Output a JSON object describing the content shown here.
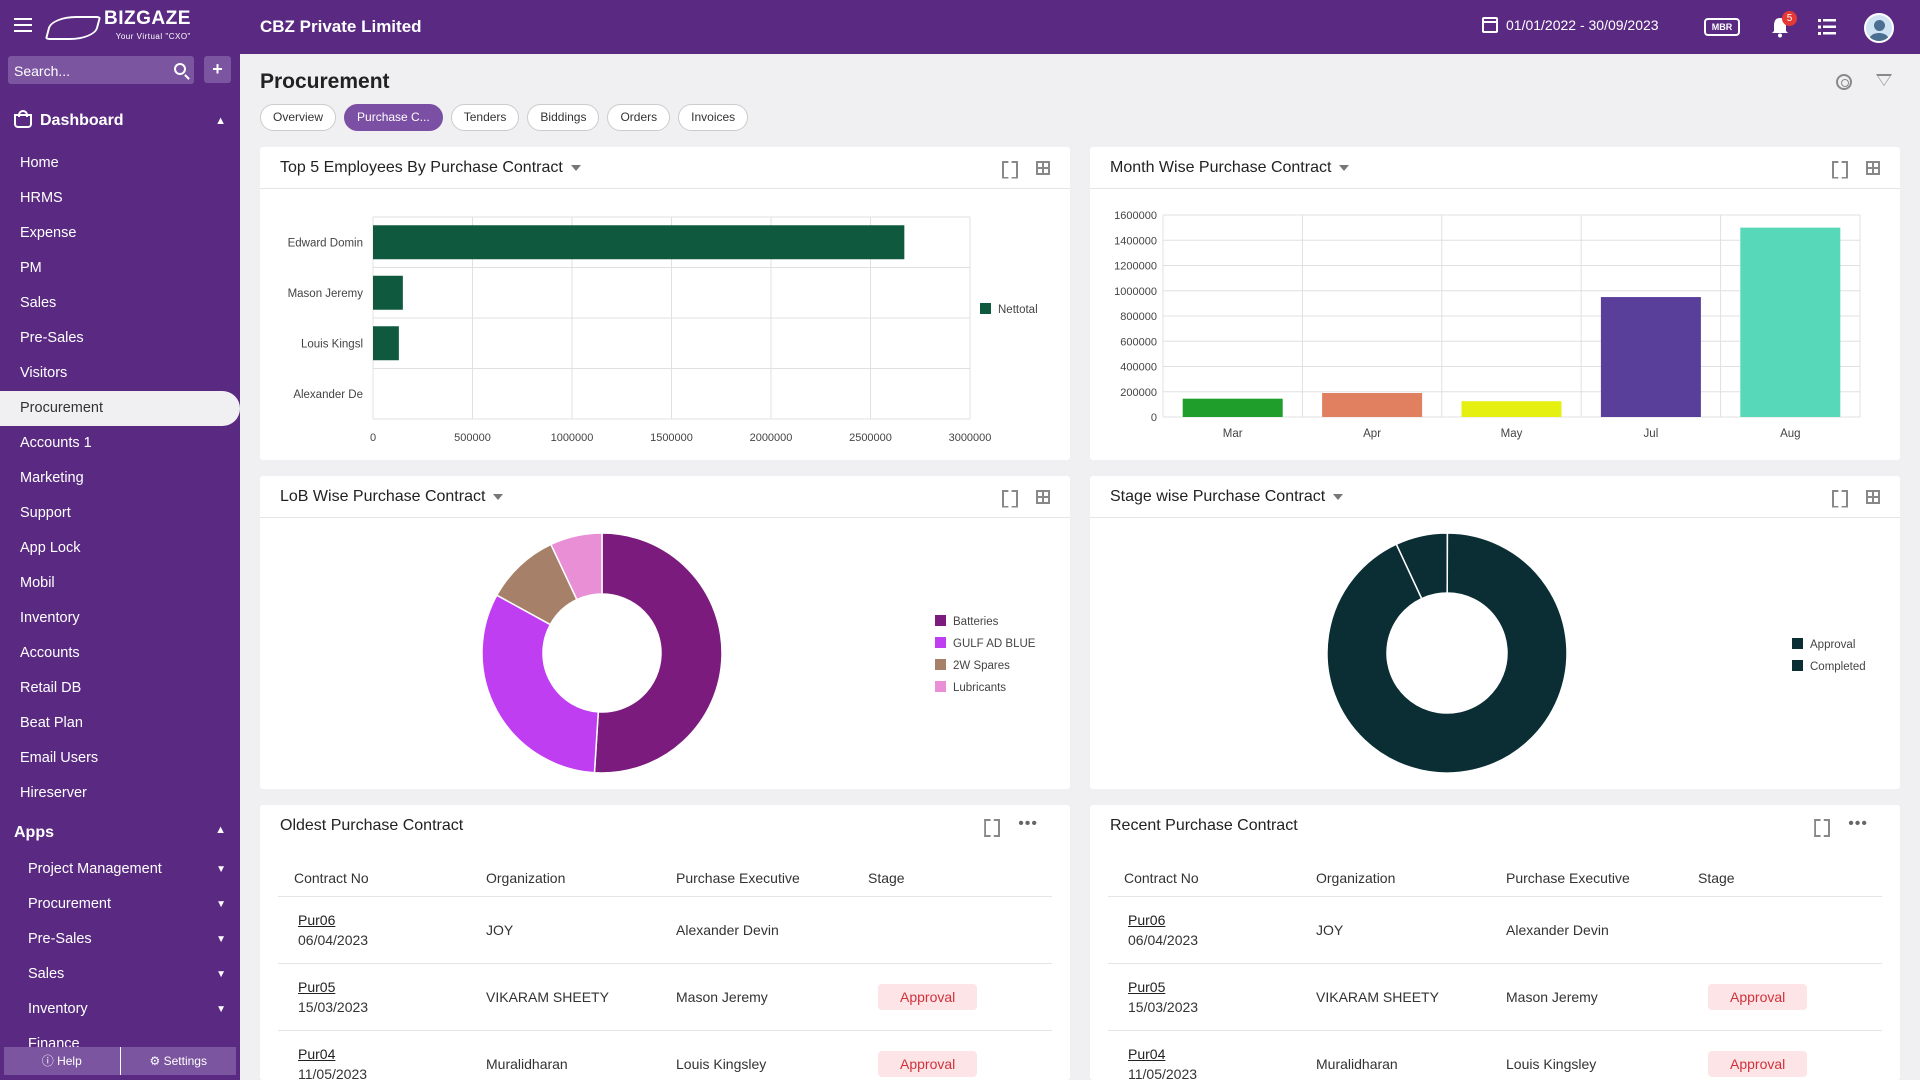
{
  "topbar": {
    "logo_text": "BIZGAZE",
    "logo_sub": "Your Virtual \"CXO\"",
    "company": "CBZ Private Limited",
    "date_range": "01/01/2022 - 30/09/2023",
    "mbr_label": "MBR",
    "notification_count": "5"
  },
  "sidebar": {
    "search_placeholder": "Search...",
    "add_label": "+",
    "dashboard_label": "Dashboard",
    "nav_items": [
      "Home",
      "HRMS",
      "Expense",
      "PM",
      "Sales",
      "Pre-Sales",
      "Visitors",
      "Procurement",
      "Accounts 1",
      "Marketing",
      "Support",
      "App Lock",
      "Mobil",
      "Inventory",
      "Accounts",
      "Retail DB",
      "Beat Plan",
      "Email Users",
      "Hireserver"
    ],
    "active_item": "Procurement",
    "apps_label": "Apps",
    "app_items": [
      "Project Management",
      "Procurement",
      "Pre-Sales",
      "Sales",
      "Inventory",
      "Finance"
    ],
    "help_label": "Help",
    "settings_label": "Settings"
  },
  "main": {
    "title": "Procurement",
    "tabs": [
      "Overview",
      "Purchase C...",
      "Tenders",
      "Biddings",
      "Orders",
      "Invoices"
    ],
    "active_tab": "Purchase C..."
  },
  "cards": {
    "top5_title": "Top 5 Employees By Purchase Contract",
    "month_title": "Month Wise Purchase Contract",
    "lob_title": "LoB Wise Purchase Contract",
    "stage_title": "Stage wise Purchase Contract",
    "oldest_title": "Oldest Purchase Contract",
    "recent_title": "Recent Purchase Contract"
  },
  "table_headers": [
    "Contract No",
    "Organization",
    "Purchase Executive",
    "Stage"
  ],
  "oldest_rows": [
    {
      "contract": "Pur06",
      "date": "06/04/2023",
      "org": "JOY",
      "exec": "Alexander Devin",
      "stage": ""
    },
    {
      "contract": "Pur05",
      "date": "15/03/2023",
      "org": "VIKARAM SHEETY",
      "exec": "Mason Jeremy",
      "stage": "Approval"
    },
    {
      "contract": "Pur04",
      "date": "11/05/2023",
      "org": "Muralidharan",
      "exec": "Louis Kingsley",
      "stage": "Approval"
    }
  ],
  "recent_rows": [
    {
      "contract": "Pur06",
      "date": "06/04/2023",
      "org": "JOY",
      "exec": "Alexander Devin",
      "stage": ""
    },
    {
      "contract": "Pur05",
      "date": "15/03/2023",
      "org": "VIKARAM SHEETY",
      "exec": "Mason Jeremy",
      "stage": "Approval"
    },
    {
      "contract": "Pur04",
      "date": "11/05/2023",
      "org": "Muralidharan",
      "exec": "Louis Kingsley",
      "stage": "Approval"
    }
  ],
  "colors": {
    "brand": "#5a2a82",
    "bar_green": "#0f5a3e",
    "approval_bg": "#fde4e6",
    "approval_text": "#d0323b"
  },
  "chart_data": [
    {
      "type": "bar",
      "orientation": "horizontal",
      "categories": [
        "Edward Domin",
        "Mason Jeremy",
        "Louis Kingsl",
        "Alexander De"
      ],
      "series": [
        {
          "name": "Nettotal",
          "values": [
            2670000,
            150000,
            130000,
            0
          ],
          "color": "#0f5a3e"
        }
      ],
      "xticks": [
        "0",
        "500000",
        "1000000",
        "1500000",
        "2000000",
        "2500000",
        "3000000"
      ],
      "xlim": [
        0,
        3000000
      ],
      "legend": "right"
    },
    {
      "type": "bar",
      "categories": [
        "Mar",
        "Apr",
        "May",
        "Jul",
        "Aug"
      ],
      "values": [
        145000,
        190000,
        125000,
        950000,
        1500000
      ],
      "colors": [
        "#1f9e2b",
        "#e08060",
        "#e5ef10",
        "#5a3f9a",
        "#57d8b9"
      ],
      "yticks": [
        "0",
        "200000",
        "400000",
        "600000",
        "800000",
        "1000000",
        "1200000",
        "1400000",
        "1600000"
      ],
      "ylim": [
        0,
        1600000
      ],
      "grid": true
    },
    {
      "type": "pie",
      "donut": true,
      "labels": [
        "Batteries",
        "GULF AD BLUE",
        "2W Spares",
        "Lubricants"
      ],
      "values": [
        51,
        32,
        10,
        7
      ],
      "colors": [
        "#7b1b7e",
        "#bf3ef2",
        "#a68068",
        "#e88fd6"
      ],
      "legend": "right"
    },
    {
      "type": "pie",
      "donut": true,
      "labels": [
        "Approval",
        "Completed"
      ],
      "values": [
        7,
        93
      ],
      "colors": [
        "#0b2e35",
        "#0b2e35"
      ],
      "legend": "right"
    }
  ]
}
